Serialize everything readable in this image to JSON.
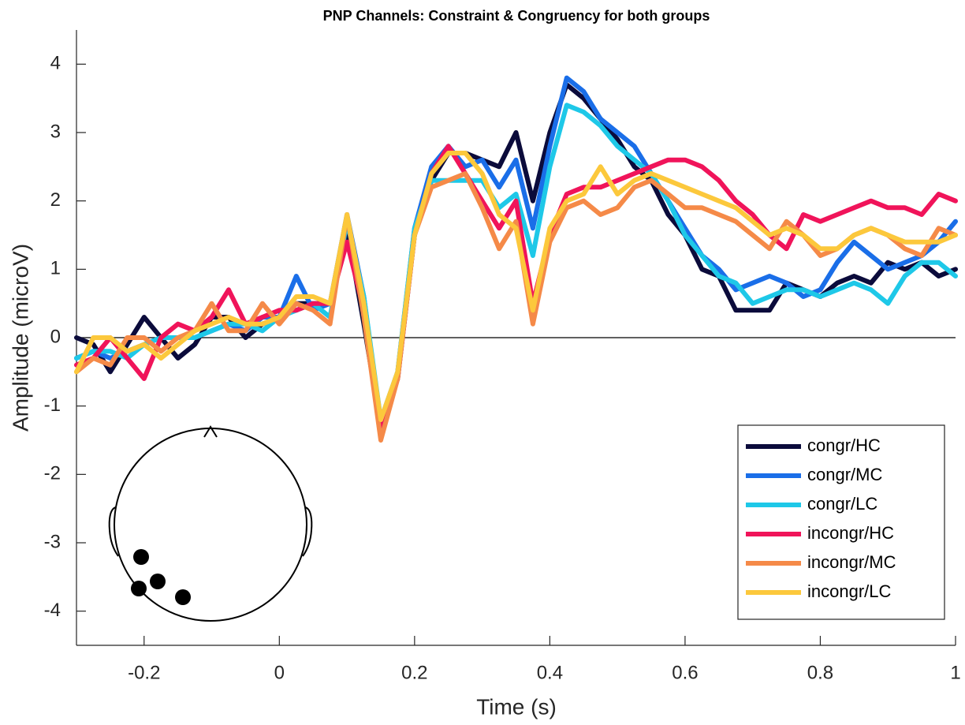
{
  "chart_data": {
    "type": "line",
    "title": "PNP Channels: Constraint & Congruency for both groups",
    "x_label": "Time (s)",
    "y_label": "Amplitude (microV)",
    "x": [
      -0.3,
      -0.275,
      -0.25,
      -0.225,
      -0.2,
      -0.175,
      -0.15,
      -0.125,
      -0.1,
      -0.075,
      -0.05,
      -0.025,
      0,
      0.025,
      0.05,
      0.075,
      0.1,
      0.125,
      0.15,
      0.175,
      0.2,
      0.225,
      0.25,
      0.275,
      0.3,
      0.325,
      0.35,
      0.375,
      0.4,
      0.425,
      0.45,
      0.475,
      0.5,
      0.525,
      0.55,
      0.575,
      0.6,
      0.625,
      0.65,
      0.675,
      0.7,
      0.725,
      0.75,
      0.775,
      0.8,
      0.825,
      0.85,
      0.875,
      0.9,
      0.925,
      0.95,
      0.975,
      1.0
    ],
    "series": [
      {
        "name": "congr/HC",
        "color": "#0b0b3b",
        "values": [
          0,
          -0.1,
          -0.5,
          -0.1,
          0.3,
          0,
          -0.3,
          -0.1,
          0.3,
          0.3,
          0,
          0.2,
          0.3,
          0.5,
          0.5,
          0.5,
          1.6,
          0.2,
          -1.3,
          -0.6,
          1.5,
          2.3,
          2.7,
          2.7,
          2.6,
          2.5,
          3.0,
          2.0,
          3.0,
          3.7,
          3.5,
          3.2,
          2.9,
          2.5,
          2.3,
          1.8,
          1.5,
          1.0,
          0.9,
          0.4,
          0.4,
          0.4,
          0.8,
          0.7,
          0.6,
          0.8,
          0.9,
          0.8,
          1.1,
          1.0,
          1.1,
          0.9,
          1.0
        ]
      },
      {
        "name": "congr/MC",
        "color": "#1a6ee8",
        "values": [
          -0.3,
          -0.2,
          -0.3,
          -0.2,
          -0.1,
          0,
          0,
          0,
          0.1,
          0.2,
          0.1,
          0.3,
          0.3,
          0.9,
          0.4,
          0.5,
          1.8,
          0.6,
          -1.3,
          -0.5,
          1.6,
          2.5,
          2.8,
          2.5,
          2.6,
          2.2,
          2.6,
          1.6,
          2.8,
          3.8,
          3.6,
          3.2,
          3.0,
          2.8,
          2.4,
          2.0,
          1.6,
          1.2,
          1.0,
          0.7,
          0.8,
          0.9,
          0.8,
          0.6,
          0.7,
          1.1,
          1.4,
          1.2,
          1.0,
          1.1,
          1.2,
          1.4,
          1.7
        ]
      },
      {
        "name": "congr/LC",
        "color": "#1ec8e8",
        "values": [
          -0.3,
          -0.2,
          -0.2,
          -0.3,
          -0.1,
          0,
          0,
          0,
          0.1,
          0.2,
          0.2,
          0.1,
          0.3,
          0.4,
          0.5,
          0.3,
          1.7,
          0.6,
          -1.2,
          -0.5,
          1.6,
          2.3,
          2.3,
          2.3,
          2.3,
          1.9,
          2.1,
          1.2,
          2.5,
          3.4,
          3.3,
          3.1,
          2.8,
          2.6,
          2.4,
          2.0,
          1.5,
          1.2,
          0.9,
          0.8,
          0.5,
          0.6,
          0.7,
          0.7,
          0.6,
          0.7,
          0.8,
          0.7,
          0.5,
          0.9,
          1.1,
          1.1,
          0.9
        ]
      },
      {
        "name": "incongr/HC",
        "color": "#f0145a",
        "values": [
          -0.4,
          -0.3,
          0,
          -0.3,
          -0.6,
          0,
          0.2,
          0.1,
          0.3,
          0.7,
          0.2,
          0.3,
          0.4,
          0.4,
          0.5,
          0.5,
          1.4,
          0.4,
          -1.4,
          -0.6,
          1.5,
          2.4,
          2.8,
          2.4,
          2.0,
          1.6,
          2.0,
          0.5,
          1.5,
          2.1,
          2.2,
          2.2,
          2.3,
          2.4,
          2.5,
          2.6,
          2.6,
          2.5,
          2.3,
          2.0,
          1.8,
          1.5,
          1.3,
          1.8,
          1.7,
          1.8,
          1.9,
          2.0,
          1.9,
          1.9,
          1.8,
          2.1,
          2.0
        ]
      },
      {
        "name": "incongr/MC",
        "color": "#f58a48",
        "values": [
          -0.5,
          -0.3,
          -0.4,
          0,
          0,
          -0.2,
          0,
          0.1,
          0.5,
          0.1,
          0.1,
          0.5,
          0.2,
          0.5,
          0.4,
          0.2,
          1.8,
          0.3,
          -1.5,
          -0.6,
          1.5,
          2.2,
          2.3,
          2.4,
          1.9,
          1.3,
          1.7,
          0.2,
          1.4,
          1.9,
          2.0,
          1.8,
          1.9,
          2.2,
          2.3,
          2.1,
          1.9,
          1.9,
          1.8,
          1.7,
          1.5,
          1.3,
          1.7,
          1.5,
          1.2,
          1.3,
          1.5,
          1.6,
          1.5,
          1.3,
          1.2,
          1.6,
          1.5
        ]
      },
      {
        "name": "incongr/LC",
        "color": "#fcc83c",
        "values": [
          -0.5,
          0,
          0,
          -0.2,
          -0.1,
          -0.3,
          -0.1,
          0.1,
          0.2,
          0.3,
          0.2,
          0.2,
          0.3,
          0.6,
          0.6,
          0.5,
          1.8,
          0.5,
          -1.2,
          -0.5,
          1.5,
          2.4,
          2.7,
          2.7,
          2.4,
          1.8,
          1.6,
          0.4,
          1.6,
          2.0,
          2.1,
          2.5,
          2.1,
          2.3,
          2.4,
          2.3,
          2.2,
          2.1,
          2.0,
          1.9,
          1.7,
          1.5,
          1.6,
          1.5,
          1.3,
          1.3,
          1.5,
          1.6,
          1.5,
          1.4,
          1.4,
          1.4,
          1.5
        ]
      }
    ],
    "xlim": [
      -0.3,
      1
    ],
    "xticks": [
      -0.2,
      0,
      0.2,
      0.4,
      0.6,
      0.8,
      1
    ],
    "ylim": [
      -4.5,
      4.5
    ],
    "yticks": [
      -4,
      -3,
      -2,
      -1,
      0,
      1,
      2,
      3,
      4
    ],
    "grid": false,
    "legend": "southeast"
  }
}
